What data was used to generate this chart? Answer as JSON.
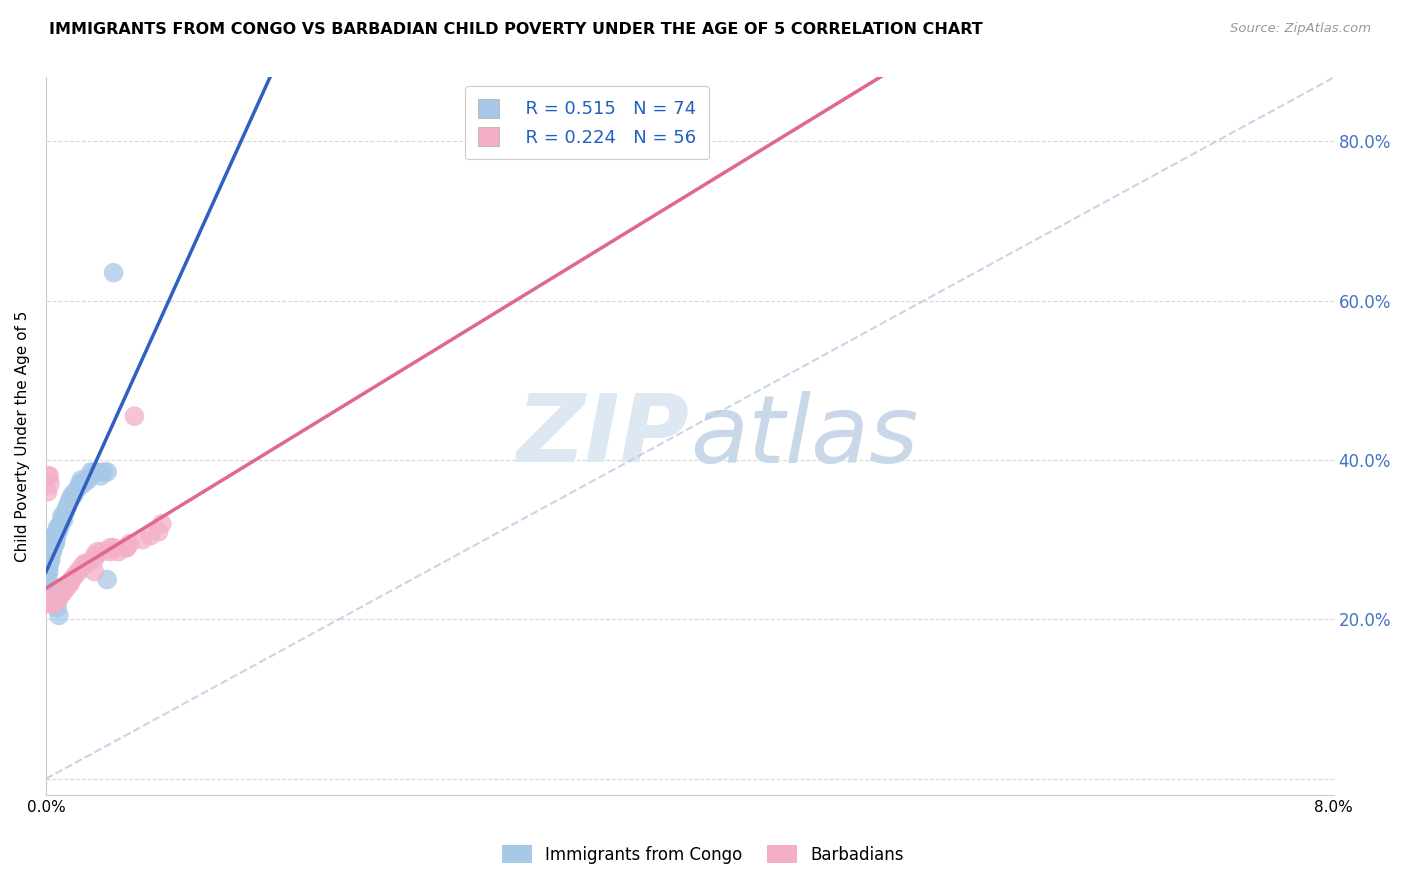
{
  "title": "IMMIGRANTS FROM CONGO VS BARBADIAN CHILD POVERTY UNDER THE AGE OF 5 CORRELATION CHART",
  "source": "Source: ZipAtlas.com",
  "ylabel": "Child Poverty Under the Age of 5",
  "ytick_labels": [
    "",
    "20.0%",
    "40.0%",
    "60.0%",
    "80.0%"
  ],
  "xlim": [
    0.0,
    0.08
  ],
  "ylim": [
    -0.02,
    0.88
  ],
  "congo_R": 0.515,
  "congo_N": 74,
  "barbadian_R": 0.224,
  "barbadian_N": 56,
  "legend_label_1": "Immigrants from Congo",
  "legend_label_2": "Barbadians",
  "scatter_color_congo": "#a8c8e8",
  "scatter_color_barbadian": "#f4afc8",
  "line_color_congo": "#3060c0",
  "line_color_barbadian": "#e06888",
  "diagonal_color": "#b8cce0",
  "background_color": "#ffffff",
  "congo_x": [
    5e-05,
    8e-05,
    0.0001,
    0.00012,
    0.00013,
    0.00015,
    0.00015,
    0.00018,
    0.0002,
    0.0002,
    0.00022,
    0.00025,
    0.00025,
    0.00028,
    0.0003,
    0.0003,
    0.00032,
    0.00035,
    0.00038,
    0.0004,
    0.0004,
    0.00042,
    0.00045,
    0.00048,
    0.0005,
    0.0005,
    0.00052,
    0.00055,
    0.00058,
    0.0006,
    0.00062,
    0.00065,
    0.0007,
    0.00072,
    0.00075,
    0.0008,
    0.00085,
    0.0009,
    0.001,
    0.001,
    0.0011,
    0.0012,
    0.0013,
    0.0014,
    0.0015,
    0.0016,
    0.0017,
    0.0018,
    0.002,
    0.0021,
    0.0022,
    0.0023,
    0.0025,
    0.0026,
    0.0028,
    0.003,
    0.0032,
    0.0034,
    0.0036,
    0.0038,
    0.00015,
    0.00018,
    0.0002,
    0.00025,
    0.0003,
    0.00035,
    0.0004,
    0.00045,
    0.0005,
    0.0006,
    0.0007,
    0.0008,
    0.0038,
    0.0042
  ],
  "congo_y": [
    0.26,
    0.27,
    0.255,
    0.265,
    0.27,
    0.265,
    0.27,
    0.26,
    0.275,
    0.285,
    0.27,
    0.28,
    0.275,
    0.285,
    0.275,
    0.28,
    0.285,
    0.29,
    0.295,
    0.285,
    0.29,
    0.295,
    0.29,
    0.3,
    0.295,
    0.305,
    0.3,
    0.305,
    0.295,
    0.305,
    0.3,
    0.305,
    0.31,
    0.315,
    0.31,
    0.315,
    0.315,
    0.32,
    0.325,
    0.33,
    0.325,
    0.335,
    0.34,
    0.345,
    0.35,
    0.355,
    0.355,
    0.36,
    0.365,
    0.37,
    0.375,
    0.37,
    0.375,
    0.375,
    0.385,
    0.385,
    0.385,
    0.38,
    0.385,
    0.385,
    0.245,
    0.245,
    0.24,
    0.24,
    0.235,
    0.235,
    0.235,
    0.23,
    0.225,
    0.22,
    0.215,
    0.205,
    0.25,
    0.635
  ],
  "barbadian_x": [
    5e-05,
    0.0001,
    0.00012,
    0.00015,
    0.00018,
    0.0002,
    0.00022,
    0.00025,
    0.00028,
    0.0003,
    0.00032,
    0.00035,
    0.0004,
    0.00045,
    0.0005,
    0.0005,
    0.00055,
    0.0006,
    0.00065,
    0.0007,
    0.00075,
    0.0008,
    0.0009,
    0.001,
    0.0011,
    0.0012,
    0.0013,
    0.0014,
    0.0015,
    0.0016,
    0.0018,
    0.002,
    0.0022,
    0.0024,
    0.0025,
    0.003,
    0.003,
    0.0032,
    0.0035,
    0.004,
    0.004,
    0.0042,
    0.0045,
    0.005,
    0.005,
    0.0052,
    0.006,
    0.0065,
    0.007,
    0.0072,
    0.0001,
    0.00015,
    0.0002,
    0.00025,
    0.003,
    0.0055
  ],
  "barbadian_y": [
    0.225,
    0.225,
    0.22,
    0.225,
    0.22,
    0.225,
    0.22,
    0.225,
    0.22,
    0.225,
    0.22,
    0.225,
    0.22,
    0.225,
    0.22,
    0.225,
    0.225,
    0.225,
    0.225,
    0.225,
    0.225,
    0.23,
    0.23,
    0.235,
    0.235,
    0.24,
    0.24,
    0.245,
    0.245,
    0.25,
    0.255,
    0.26,
    0.265,
    0.27,
    0.27,
    0.275,
    0.28,
    0.285,
    0.285,
    0.29,
    0.285,
    0.29,
    0.285,
    0.29,
    0.29,
    0.295,
    0.3,
    0.305,
    0.31,
    0.32,
    0.36,
    0.38,
    0.38,
    0.37,
    0.26,
    0.455
  ]
}
